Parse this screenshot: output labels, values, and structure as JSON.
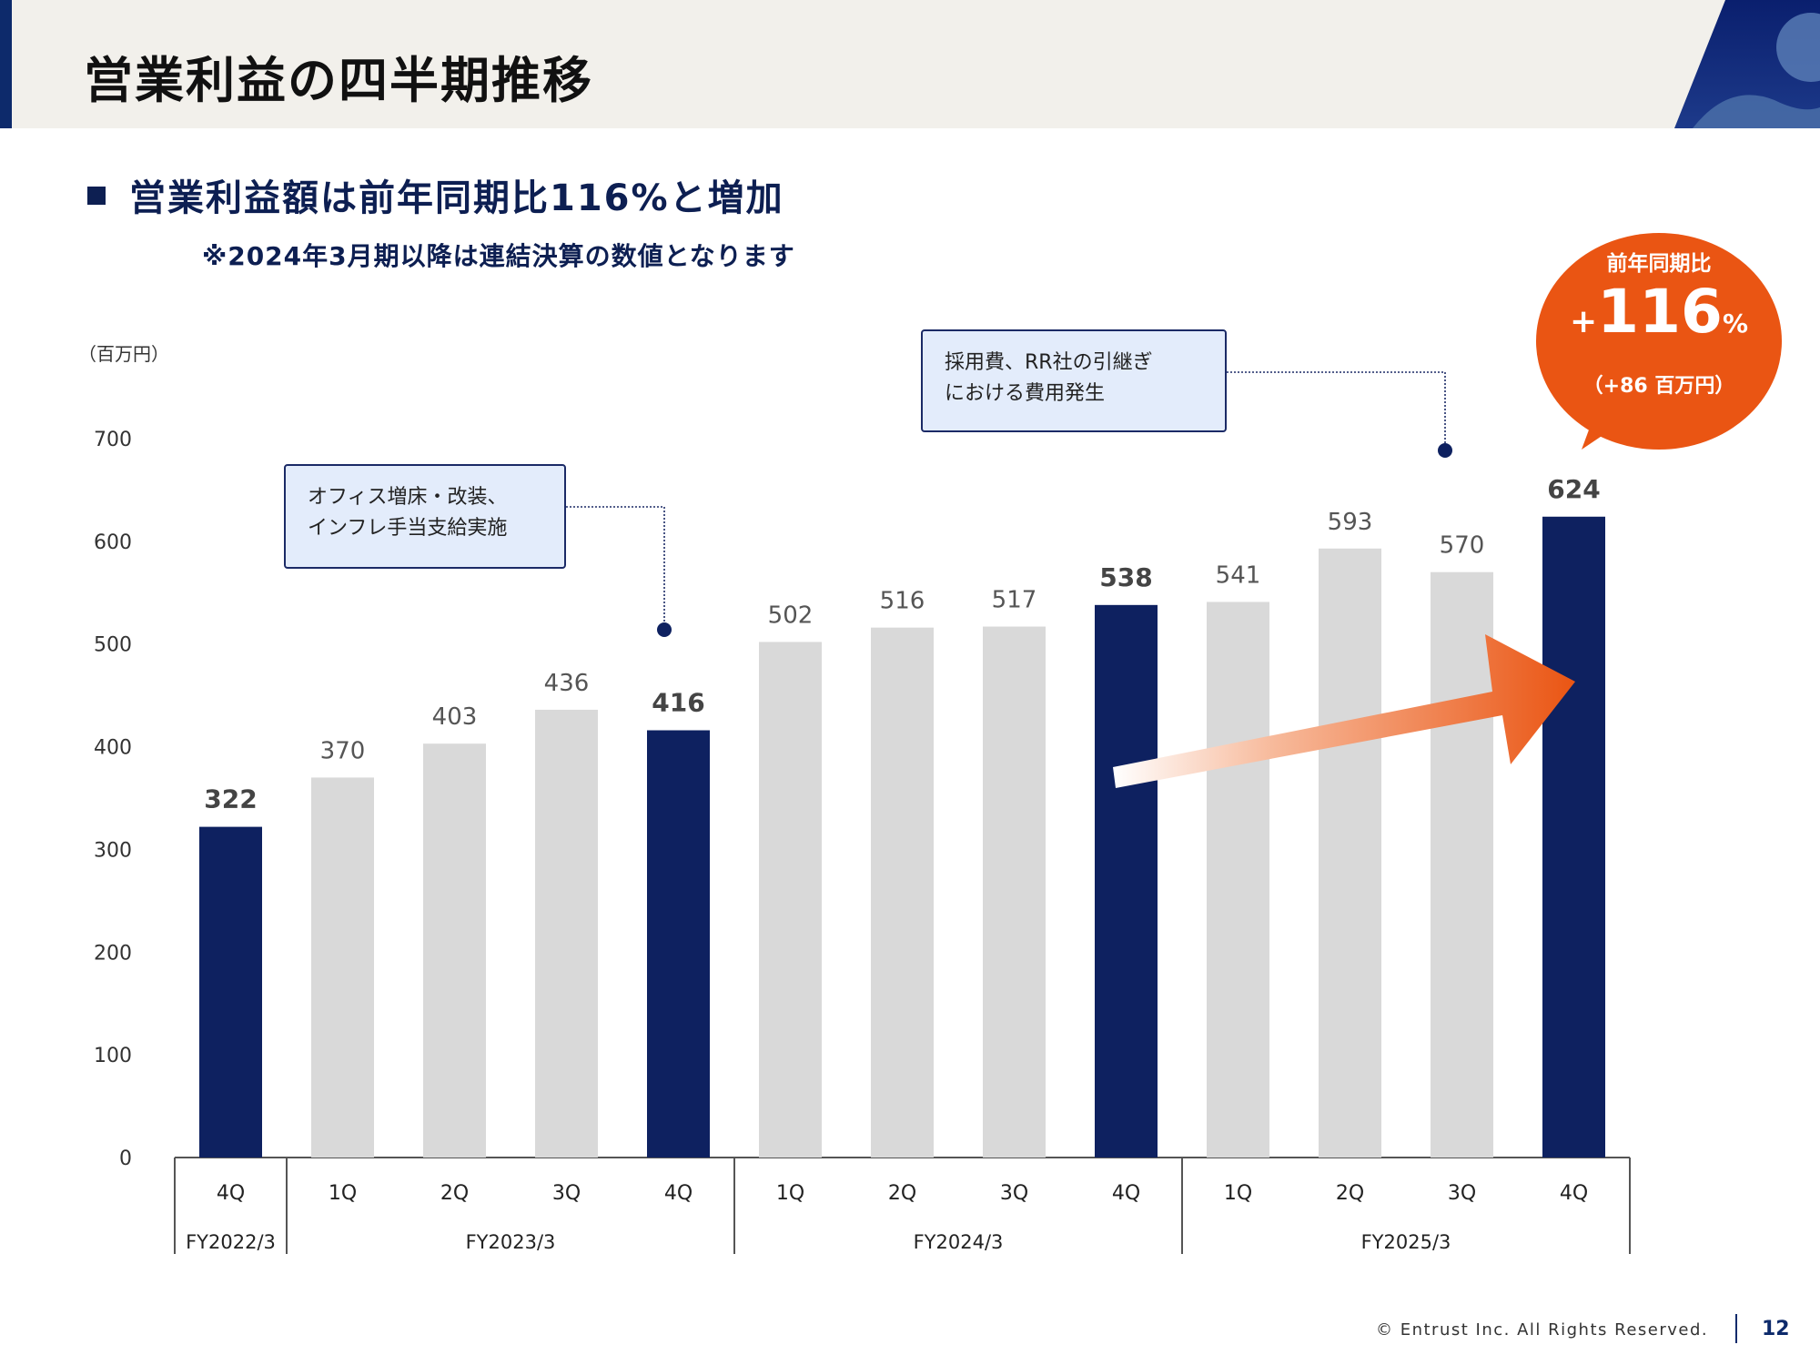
{
  "page": {
    "title": "営業利益の四半期推移",
    "headline": "営業利益額は前年同期比116%と増加",
    "note": "※2024年3月期以降は連結決算の数値となります",
    "unit_label": "（百万円）",
    "footer": "© Entrust Inc. All Rights Reserved.",
    "page_number": "12"
  },
  "callouts": [
    {
      "lines": [
        "オフィス増床・改装、",
        "インフレ手当支給実施"
      ]
    },
    {
      "lines": [
        "採用費、RR社の引継ぎ",
        "における費用発生"
      ]
    }
  ],
  "badge": {
    "label": "前年同期比",
    "sign": "+",
    "value": "116",
    "unit": "%",
    "sub": "（+86 百万円）"
  },
  "colors": {
    "highlight_bar": "#0e2160",
    "normal_bar": "#d9d9d9",
    "accent_orange": "#ea5513",
    "brand_navy": "#0d2a6b"
  },
  "chart_data": {
    "type": "bar",
    "categories": [
      "4Q",
      "1Q",
      "2Q",
      "3Q",
      "4Q",
      "1Q",
      "2Q",
      "3Q",
      "4Q",
      "1Q",
      "2Q",
      "3Q",
      "4Q"
    ],
    "values": [
      322,
      370,
      403,
      436,
      416,
      502,
      516,
      517,
      538,
      541,
      593,
      570,
      624
    ],
    "highlighted": [
      true,
      false,
      false,
      false,
      true,
      false,
      false,
      false,
      true,
      false,
      false,
      false,
      true
    ],
    "groups": [
      {
        "label": "FY2022/3",
        "count": 1
      },
      {
        "label": "FY2023/3",
        "count": 4
      },
      {
        "label": "FY2024/3",
        "count": 4
      },
      {
        "label": "FY2025/3",
        "count": 4
      }
    ],
    "ylim": [
      0,
      700
    ],
    "yticks": [
      0,
      100,
      200,
      300,
      400,
      500,
      600,
      700
    ],
    "grid": false,
    "legend": "none"
  }
}
